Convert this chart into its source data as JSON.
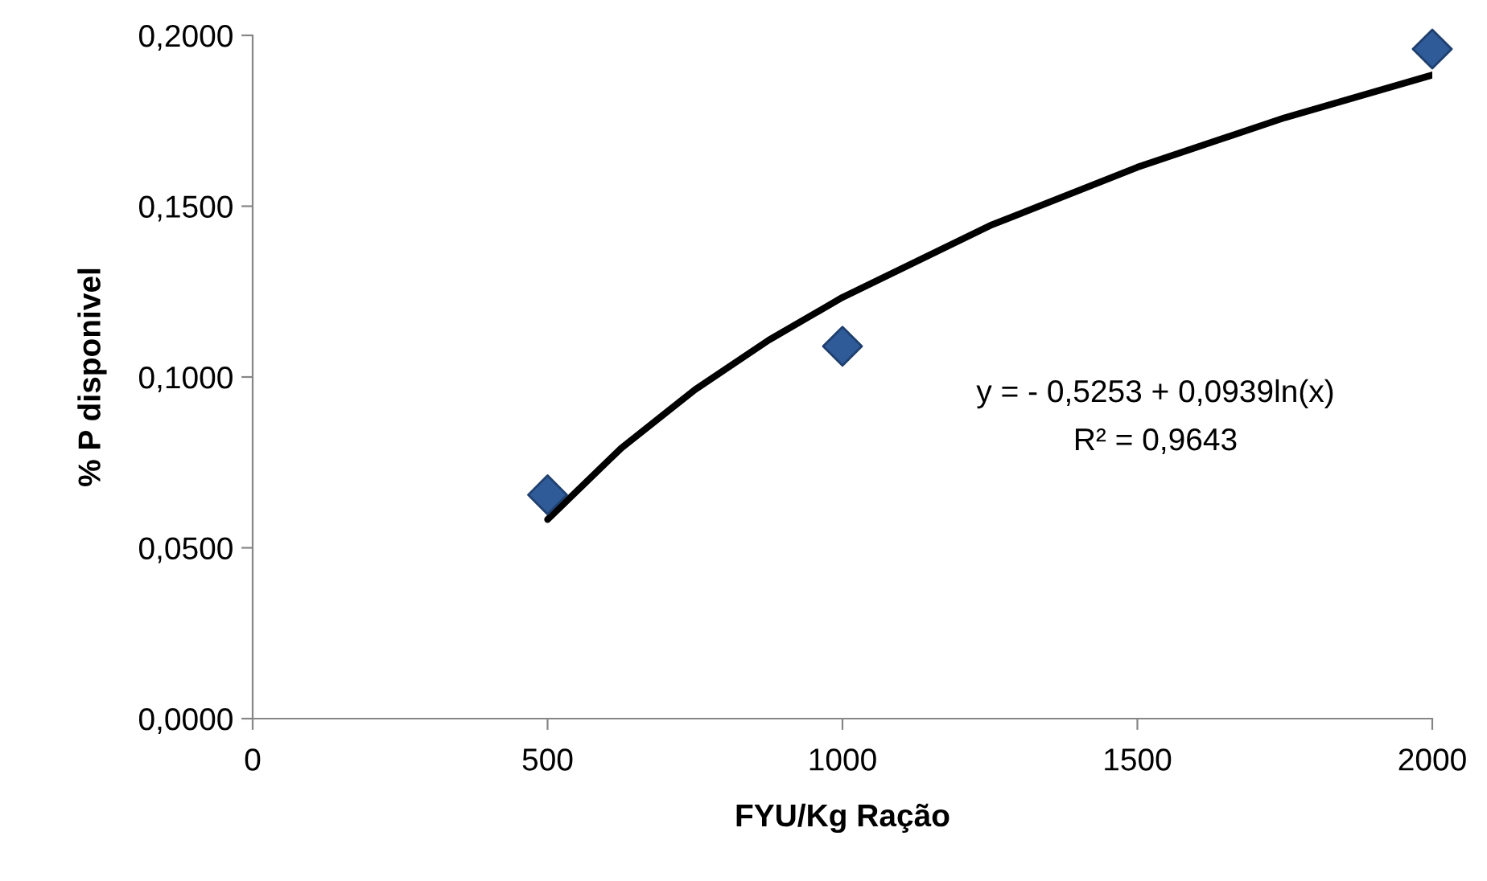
{
  "chart_data": {
    "type": "scatter",
    "xlabel": "FYU/Kg Ração",
    "ylabel": "% P disponivel",
    "xlim": [
      0,
      2000
    ],
    "xticks": [
      0,
      500,
      1000,
      1500,
      2000
    ],
    "ylim": [
      0,
      0.2
    ],
    "yticks": [
      {
        "value": 0,
        "label": "0,0000"
      },
      {
        "value": 0.05,
        "label": "0,0500"
      },
      {
        "value": 0.1,
        "label": "0,1000"
      },
      {
        "value": 0.15,
        "label": "0,1500"
      },
      {
        "value": 0.2,
        "label": "0,2000"
      }
    ],
    "grid": false,
    "marker": "diamond",
    "series": [
      {
        "color": "#2f5b98",
        "x": [
          500,
          1000,
          2000
        ],
        "values": [
          0.0655,
          0.109,
          0.196
        ]
      },
      {
        "type": "line",
        "color": "#000000",
        "line_style": "solid",
        "marker": "none",
        "x": [
          500,
          625,
          750,
          875,
          1000,
          1250,
          1500,
          1750,
          2000
        ],
        "values": [
          0.0583,
          0.0792,
          0.0963,
          0.1108,
          0.1233,
          0.1443,
          0.1614,
          0.1759,
          0.1884
        ]
      }
    ],
    "annotations": [
      "y = - 0,5253 + 0,0939ln(x)",
      "R² = 0,9643"
    ]
  }
}
